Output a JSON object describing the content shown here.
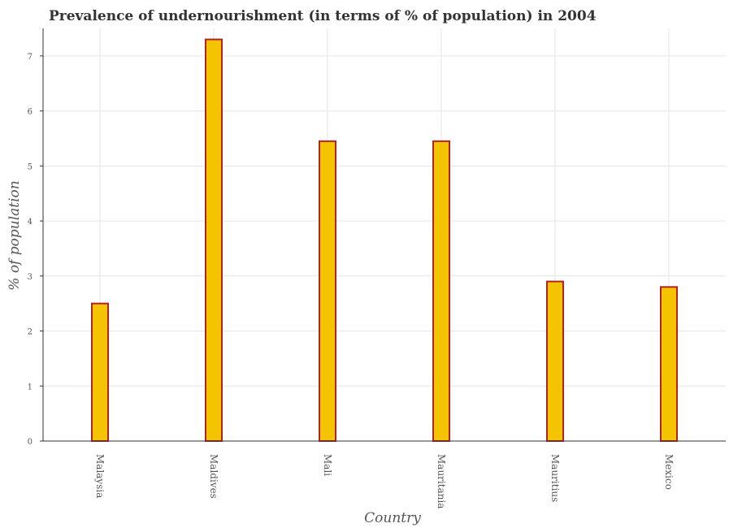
{
  "chart_data": {
    "type": "bar",
    "title": "Prevalence of undernourishment (in terms of % of population) in 2004",
    "xlabel": "Country",
    "ylabel": "% of population",
    "categories": [
      "Malaysia",
      "Maldives",
      "Mali",
      "Mauritania",
      "Mauritius",
      "Mexico"
    ],
    "values": [
      2.5,
      7.3,
      5.45,
      5.45,
      2.9,
      2.8
    ],
    "yticks": [
      0,
      1,
      2,
      3,
      4,
      5,
      6,
      7
    ],
    "ylim": [
      0,
      7.5
    ],
    "grid": true,
    "colors": {
      "bar_fill": "#f5c400",
      "bar_edge": "#b22222",
      "grid": "#e6e6e6",
      "axis": "#333333"
    }
  }
}
